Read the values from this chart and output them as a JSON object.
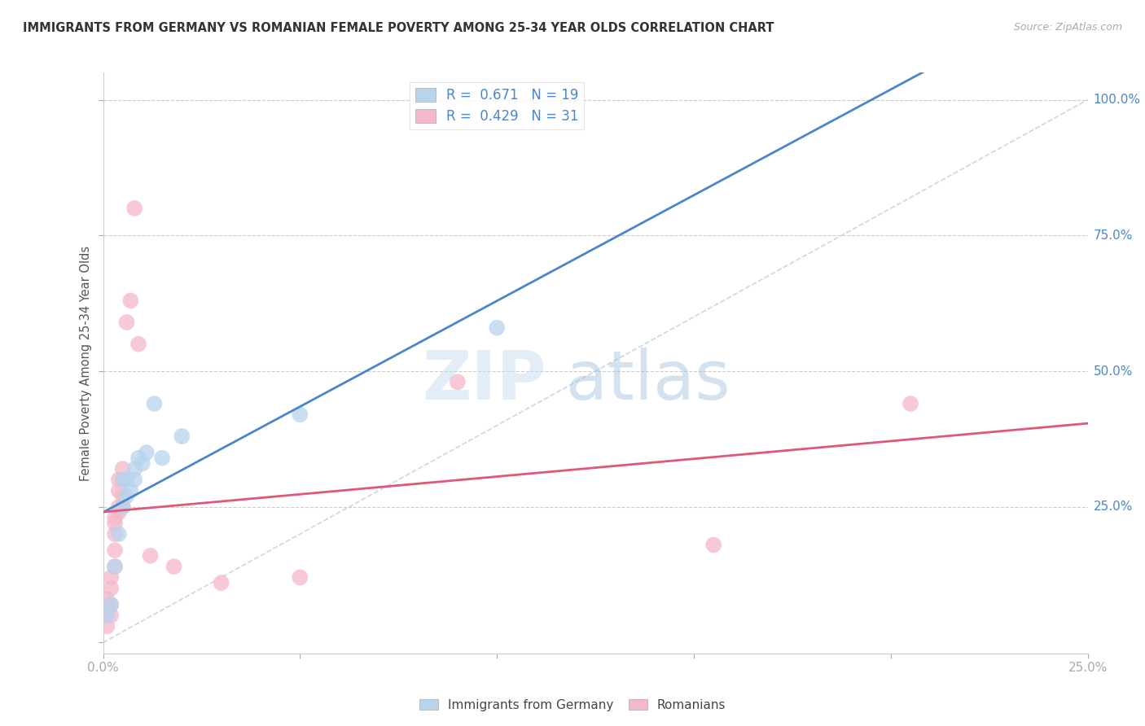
{
  "title": "IMMIGRANTS FROM GERMANY VS ROMANIAN FEMALE POVERTY AMONG 25-34 YEAR OLDS CORRELATION CHART",
  "source": "Source: ZipAtlas.com",
  "ylabel": "Female Poverty Among 25-34 Year Olds",
  "xlim": [
    0,
    0.25
  ],
  "ylim": [
    -0.02,
    1.05
  ],
  "germany_R": 0.671,
  "germany_N": 19,
  "romanian_R": 0.429,
  "romanian_N": 31,
  "germany_color": "#b8d4ed",
  "romanian_color": "#f5b8ca",
  "germany_line_color": "#4a86c8",
  "romanian_line_color": "#e05878",
  "germany_scatter": [
    [
      0.001,
      0.05
    ],
    [
      0.002,
      0.07
    ],
    [
      0.003,
      0.14
    ],
    [
      0.004,
      0.2
    ],
    [
      0.005,
      0.25
    ],
    [
      0.005,
      0.3
    ],
    [
      0.006,
      0.27
    ],
    [
      0.006,
      0.3
    ],
    [
      0.007,
      0.28
    ],
    [
      0.008,
      0.3
    ],
    [
      0.008,
      0.32
    ],
    [
      0.009,
      0.34
    ],
    [
      0.01,
      0.33
    ],
    [
      0.011,
      0.35
    ],
    [
      0.013,
      0.44
    ],
    [
      0.015,
      0.34
    ],
    [
      0.02,
      0.38
    ],
    [
      0.05,
      0.42
    ],
    [
      0.1,
      0.58
    ]
  ],
  "romanian_scatter": [
    [
      0.001,
      0.03
    ],
    [
      0.001,
      0.06
    ],
    [
      0.001,
      0.08
    ],
    [
      0.002,
      0.05
    ],
    [
      0.002,
      0.07
    ],
    [
      0.002,
      0.1
    ],
    [
      0.002,
      0.12
    ],
    [
      0.003,
      0.14
    ],
    [
      0.003,
      0.17
    ],
    [
      0.003,
      0.2
    ],
    [
      0.003,
      0.22
    ],
    [
      0.003,
      0.23
    ],
    [
      0.004,
      0.24
    ],
    [
      0.004,
      0.25
    ],
    [
      0.004,
      0.28
    ],
    [
      0.004,
      0.3
    ],
    [
      0.005,
      0.25
    ],
    [
      0.005,
      0.27
    ],
    [
      0.005,
      0.3
    ],
    [
      0.005,
      0.32
    ],
    [
      0.006,
      0.59
    ],
    [
      0.007,
      0.63
    ],
    [
      0.008,
      0.8
    ],
    [
      0.009,
      0.55
    ],
    [
      0.012,
      0.16
    ],
    [
      0.018,
      0.14
    ],
    [
      0.03,
      0.11
    ],
    [
      0.05,
      0.12
    ],
    [
      0.09,
      0.48
    ],
    [
      0.155,
      0.18
    ],
    [
      0.205,
      0.44
    ]
  ],
  "watermark_zip": "ZIP",
  "watermark_atlas": "atlas",
  "background_color": "#ffffff",
  "grid_color": "#cccccc",
  "ref_line_color": "#c8d8e8"
}
